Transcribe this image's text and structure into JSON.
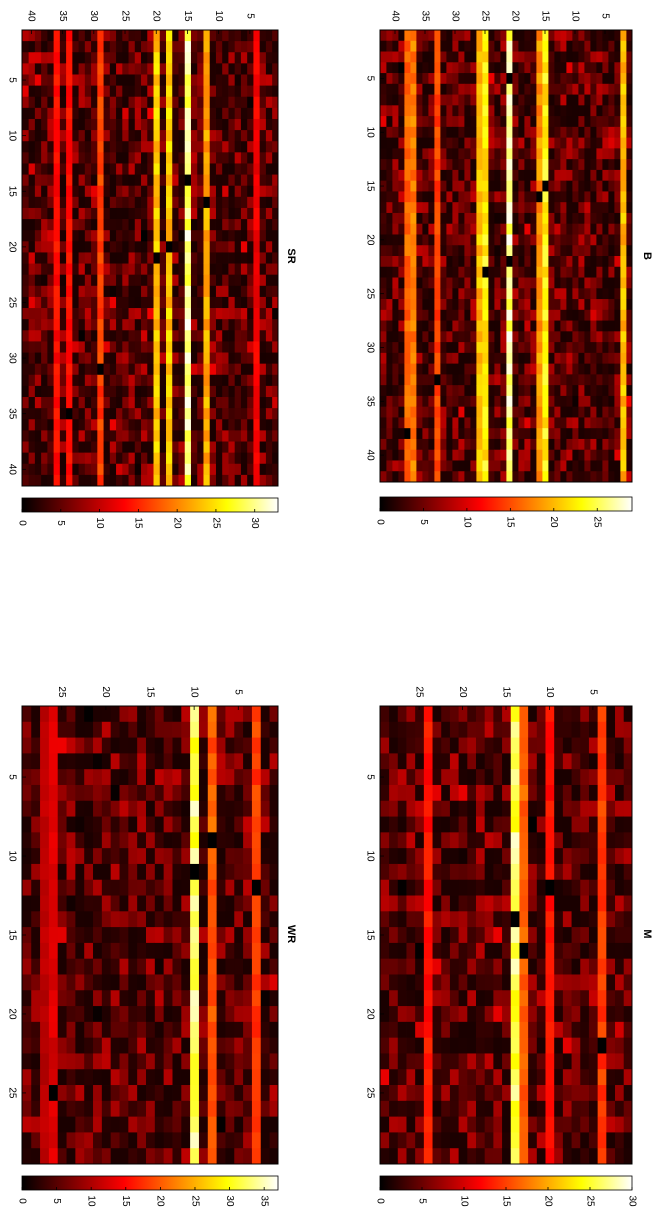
{
  "figure": {
    "colormap": "hot",
    "colormap_stops": [
      "#000000",
      "#800000",
      "#ff0000",
      "#ff8000",
      "#ffff00",
      "#ffffff"
    ]
  },
  "chart_data": [
    {
      "type": "heatmap",
      "title": "B",
      "grid_size": 42,
      "orientation": "rotated 90 degrees clockwise",
      "row_ticks": [
        5,
        10,
        15,
        20,
        25,
        30,
        35,
        40
      ],
      "col_ticks": [
        5,
        10,
        15,
        20,
        25,
        30,
        35,
        40
      ],
      "colorbar_ticks": [
        0,
        5,
        10,
        15,
        20,
        25
      ],
      "clim": [
        0,
        29
      ],
      "stripes": [
        {
          "col": 2,
          "value": 22
        },
        {
          "col": 15,
          "value": 25
        },
        {
          "col": 16,
          "value": 20
        },
        {
          "col": 21,
          "value": 29
        },
        {
          "col": 25,
          "value": 25
        },
        {
          "col": 26,
          "value": 22
        },
        {
          "col": 33,
          "value": 16
        },
        {
          "col": 37,
          "value": 19
        },
        {
          "col": 38,
          "value": 18
        }
      ],
      "dark_cells": [
        {
          "row": 5,
          "col": 21
        },
        {
          "row": 15,
          "col": 15
        },
        {
          "row": 16,
          "col": 16
        },
        {
          "row": 22,
          "col": 21
        },
        {
          "row": 23,
          "col": 25
        },
        {
          "row": 33,
          "col": 33
        },
        {
          "row": 38,
          "col": 38
        }
      ]
    },
    {
      "type": "heatmap",
      "title": "SR",
      "grid_size": 41,
      "orientation": "rotated 90 degrees clockwise",
      "row_ticks": [
        5,
        10,
        15,
        20,
        25,
        30,
        35,
        40
      ],
      "col_ticks": [
        5,
        10,
        15,
        20,
        25,
        30,
        35,
        40
      ],
      "colorbar_ticks": [
        0,
        5,
        10,
        15,
        20,
        25,
        30
      ],
      "clim": [
        0,
        33
      ],
      "stripes": [
        {
          "col": 4,
          "value": 14
        },
        {
          "col": 12,
          "value": 24
        },
        {
          "col": 15,
          "value": 33
        },
        {
          "col": 18,
          "value": 26
        },
        {
          "col": 20,
          "value": 26
        },
        {
          "col": 29,
          "value": 18
        },
        {
          "col": 34,
          "value": 15
        },
        {
          "col": 36,
          "value": 15
        }
      ],
      "dark_cells": [
        {
          "row": 14,
          "col": 15
        },
        {
          "row": 16,
          "col": 12
        },
        {
          "row": 20,
          "col": 18
        },
        {
          "row": 21,
          "col": 20
        },
        {
          "row": 31,
          "col": 29
        },
        {
          "row": 35,
          "col": 34
        }
      ]
    },
    {
      "type": "heatmap",
      "title": "M",
      "grid_size": 29,
      "orientation": "rotated 90 degrees clockwise",
      "row_ticks": [
        5,
        10,
        15,
        20,
        25
      ],
      "col_ticks": [
        5,
        10,
        15,
        20,
        25
      ],
      "colorbar_ticks": [
        0,
        5,
        10,
        15,
        20,
        25,
        30
      ],
      "clim": [
        0,
        30
      ],
      "stripes": [
        {
          "col": 4,
          "value": 16
        },
        {
          "col": 10,
          "value": 14
        },
        {
          "col": 13,
          "value": 18
        },
        {
          "col": 14,
          "value": 29
        },
        {
          "col": 24,
          "value": 14
        }
      ],
      "dark_cells": [
        {
          "row": 8,
          "col": 12
        },
        {
          "row": 12,
          "col": 10
        },
        {
          "row": 14,
          "col": 14
        },
        {
          "row": 16,
          "col": 13
        },
        {
          "row": 22,
          "col": 4
        }
      ]
    },
    {
      "type": "heatmap",
      "title": "WR",
      "grid_size": 29,
      "orientation": "rotated 90 degrees clockwise",
      "row_ticks": [
        5,
        10,
        15,
        20,
        25
      ],
      "col_ticks": [
        5,
        10,
        15,
        20,
        25
      ],
      "colorbar_ticks": [
        0,
        5,
        10,
        15,
        20,
        25,
        30,
        35
      ],
      "clim": [
        0,
        37
      ],
      "stripes": [
        {
          "col": 3,
          "value": 20
        },
        {
          "col": 8,
          "value": 22
        },
        {
          "col": 10,
          "value": 36
        },
        {
          "col": 26,
          "value": 14
        },
        {
          "col": 27,
          "value": 12
        }
      ],
      "dark_cells": [
        {
          "row": 9,
          "col": 8
        },
        {
          "row": 11,
          "col": 10
        },
        {
          "row": 12,
          "col": 3
        },
        {
          "row": 25,
          "col": 26
        }
      ]
    }
  ]
}
